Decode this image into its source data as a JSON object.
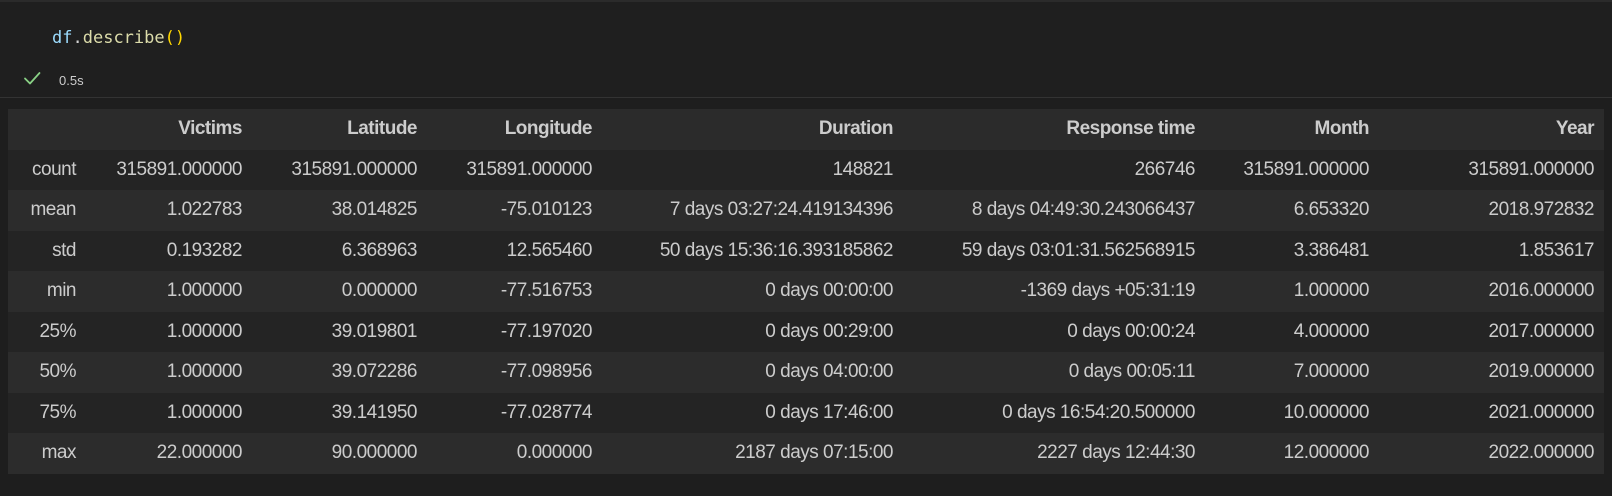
{
  "cell": {
    "code": {
      "var": "df",
      "dot": ".",
      "func": "describe",
      "parens": "()"
    },
    "status": {
      "icon": "check-icon",
      "time": "0.5s",
      "icon_color": "#89d185"
    }
  },
  "table": {
    "columns": [
      "",
      "Victims",
      "Latitude",
      "Longitude",
      "Duration",
      "Response time",
      "Month",
      "Year"
    ],
    "rows": [
      [
        "count",
        "315891.000000",
        "315891.000000",
        "315891.000000",
        "148821",
        "266746",
        "315891.000000",
        "315891.000000"
      ],
      [
        "mean",
        "1.022783",
        "38.014825",
        "-75.010123",
        "7 days 03:27:24.419134396",
        "8 days 04:49:30.243066437",
        "6.653320",
        "2018.972832"
      ],
      [
        "std",
        "0.193282",
        "6.368963",
        "12.565460",
        "50 days 15:36:16.393185862",
        "59 days 03:01:31.562568915",
        "3.386481",
        "1.853617"
      ],
      [
        "min",
        "1.000000",
        "0.000000",
        "-77.516753",
        "0 days 00:00:00",
        "-1369 days +05:31:19",
        "1.000000",
        "2016.000000"
      ],
      [
        "25%",
        "1.000000",
        "39.019801",
        "-77.197020",
        "0 days 00:29:00",
        "0 days 00:00:24",
        "4.000000",
        "2017.000000"
      ],
      [
        "50%",
        "1.000000",
        "39.072286",
        "-77.098956",
        "0 days 04:00:00",
        "0 days 00:05:11",
        "7.000000",
        "2019.000000"
      ],
      [
        "75%",
        "1.000000",
        "39.141950",
        "-77.028774",
        "0 days 17:46:00",
        "0 days 16:54:20.500000",
        "10.000000",
        "2021.000000"
      ],
      [
        "max",
        "22.000000",
        "90.000000",
        "0.000000",
        "2187 days 07:15:00",
        "2227 days 12:44:30",
        "12.000000",
        "2022.000000"
      ]
    ]
  }
}
